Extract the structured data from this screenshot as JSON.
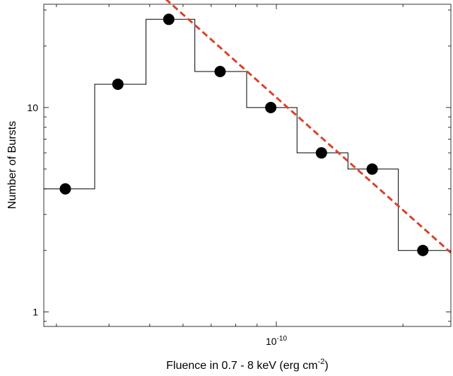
{
  "chart_data": {
    "type": "line",
    "title": "",
    "xlabel": "Fluence in 0.7 - 8 keV (erg cm",
    "xlabel_sup": "-2",
    "xlabel_tail": ")",
    "ylabel": "Number of Bursts",
    "xscale": "log",
    "yscale": "log",
    "xlim": [
      2.8e-11,
      2.6e-10
    ],
    "ylim": [
      0.85,
      32
    ],
    "grid": false,
    "box": true,
    "x_tick_labels": [
      {
        "value": 1e-10,
        "base": "10",
        "exp": "-10"
      }
    ],
    "y_tick_labels": [
      {
        "value": 1,
        "text": "1"
      },
      {
        "value": 10,
        "text": "10"
      }
    ],
    "series": [
      {
        "style": "step",
        "color": "#000000",
        "bin_edges": [
          2.8e-11,
          3.7e-11,
          4.9e-11,
          6.4e-11,
          8.5e-11,
          1.12e-10,
          1.48e-10,
          1.95e-10,
          2.57e-10,
          2.6e-10
        ],
        "values": [
          4,
          13,
          27,
          15,
          10,
          6,
          5,
          2,
          2
        ]
      },
      {
        "style": "markers",
        "color": "#000000",
        "x": [
          3.15e-11,
          4.2e-11,
          5.55e-11,
          7.35e-11,
          9.7e-11,
          1.28e-10,
          1.69e-10,
          2.23e-10
        ],
        "y": [
          4,
          13,
          27,
          15,
          10,
          6,
          5,
          2
        ]
      },
      {
        "style": "dashed",
        "color": "#d9432b",
        "x": [
          5.45e-11,
          2.6e-10
        ],
        "y": [
          34,
          1.95
        ]
      }
    ]
  }
}
